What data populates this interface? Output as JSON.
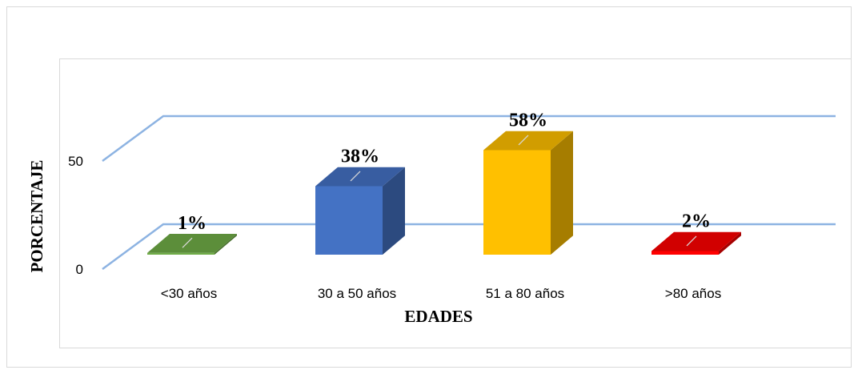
{
  "chart_data": {
    "type": "bar",
    "style": "3d-column",
    "categories": [
      "<30 años",
      "30 a 50 años",
      "51 a 80 años",
      ">80 años"
    ],
    "values": [
      1,
      38,
      58,
      2
    ],
    "data_labels": [
      "1%",
      "38%",
      "58%",
      "2%"
    ],
    "title": "",
    "xlabel": "EDADES",
    "ylabel": "PORCENTAJE",
    "yticks": [
      0,
      50
    ],
    "ylim": [
      0,
      100
    ],
    "grid": true,
    "legend": "none",
    "colors": [
      "#70ad47",
      "#4472c4",
      "#ffc000",
      "#ff0000"
    ],
    "gridline_color": "#8db3e2"
  }
}
